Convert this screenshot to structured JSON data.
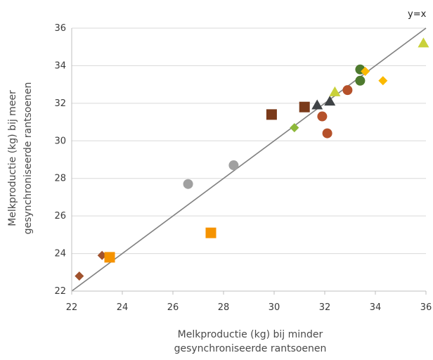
{
  "chart_data": {
    "type": "scatter",
    "xlabel_lines": [
      "Melkproductie (kg) bij minder",
      "gesynchroniseerde rantsoenen"
    ],
    "ylabel_lines": [
      "Melkproductie (kg) bij meer",
      "gesynchroniseerde rantsoenen"
    ],
    "xlim": [
      22,
      36
    ],
    "ylim": [
      22,
      36
    ],
    "xticks": [
      22,
      24,
      26,
      28,
      30,
      32,
      34,
      36
    ],
    "yticks": [
      22,
      24,
      26,
      28,
      30,
      32,
      34,
      36
    ],
    "grid": "horizontal",
    "reference_line": {
      "label": "y=x",
      "from": [
        22,
        22
      ],
      "to": [
        36,
        36
      ],
      "color": "#808080"
    },
    "series": [
      {
        "marker": "diamond",
        "color": "#A0522D",
        "points": [
          [
            22.3,
            22.8
          ],
          [
            23.2,
            23.9
          ]
        ]
      },
      {
        "marker": "square",
        "color": "#F59300",
        "points": [
          [
            23.5,
            23.8
          ],
          [
            27.5,
            25.1
          ]
        ]
      },
      {
        "marker": "circle",
        "color": "#A0A0A0",
        "points": [
          [
            26.6,
            27.7
          ],
          [
            28.4,
            28.7
          ]
        ]
      },
      {
        "marker": "square",
        "color": "#7A3A1A",
        "points": [
          [
            29.9,
            31.4
          ],
          [
            31.2,
            31.8
          ]
        ]
      },
      {
        "marker": "diamond",
        "color": "#8DB83A",
        "points": [
          [
            30.8,
            30.7
          ]
        ]
      },
      {
        "marker": "circle",
        "color": "#B5512A",
        "points": [
          [
            31.9,
            31.3
          ],
          [
            32.1,
            30.4
          ],
          [
            32.9,
            32.7
          ]
        ]
      },
      {
        "marker": "triangle",
        "color": "#3F4346",
        "points": [
          [
            31.7,
            31.9
          ],
          [
            32.2,
            32.1
          ]
        ]
      },
      {
        "marker": "triangle",
        "color": "#C9D13A",
        "points": [
          [
            32.4,
            32.6
          ],
          [
            35.9,
            35.2
          ]
        ]
      },
      {
        "marker": "circle",
        "color": "#4E7A2E",
        "points": [
          [
            33.4,
            33.8
          ],
          [
            33.4,
            33.2
          ]
        ]
      },
      {
        "marker": "diamond",
        "color": "#FBB900",
        "points": [
          [
            33.6,
            33.7
          ],
          [
            34.3,
            33.2
          ]
        ]
      }
    ]
  }
}
